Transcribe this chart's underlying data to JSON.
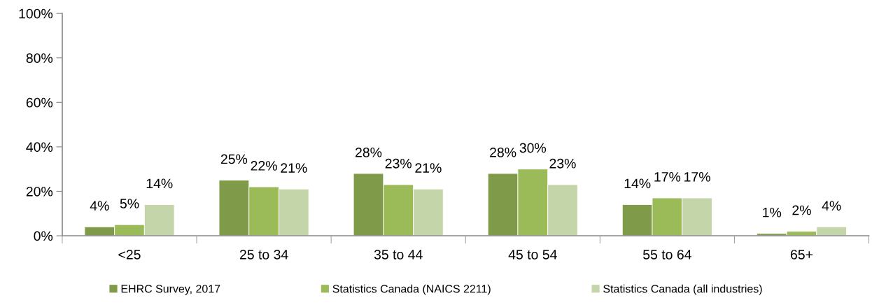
{
  "chart_data": {
    "type": "bar",
    "categories": [
      "<25",
      "25 to 34",
      "35 to 44",
      "45 to 54",
      "55 to 64",
      "65+"
    ],
    "series": [
      {
        "name": "EHRC Survey, 2017",
        "color": "#7f9a48",
        "values": [
          4,
          25,
          28,
          28,
          14,
          1
        ],
        "value_labels": [
          "4%",
          "25%",
          "28%",
          "28%",
          "14%",
          "1%"
        ]
      },
      {
        "name": "Statistics Canada (NAICS 2211)",
        "color": "#9bbb59",
        "values": [
          5,
          22,
          23,
          30,
          17,
          2
        ],
        "value_labels": [
          "5%",
          "22%",
          "23%",
          "30%",
          "17%",
          "2%"
        ]
      },
      {
        "name": "Statistics Canada (all industries)",
        "color": "#c4d6a9",
        "values": [
          14,
          21,
          21,
          23,
          17,
          4
        ],
        "value_labels": [
          "14%",
          "21%",
          "21%",
          "23%",
          "17%",
          "4%"
        ]
      }
    ],
    "ylim": [
      0,
      100
    ],
    "yticks": [
      {
        "value": 0,
        "label": "0%"
      },
      {
        "value": 20,
        "label": "20%"
      },
      {
        "value": 40,
        "label": "40%"
      },
      {
        "value": 60,
        "label": "60%"
      },
      {
        "value": 80,
        "label": "80%"
      },
      {
        "value": 100,
        "label": "100%"
      }
    ],
    "grid": false,
    "legend": "bottom"
  }
}
